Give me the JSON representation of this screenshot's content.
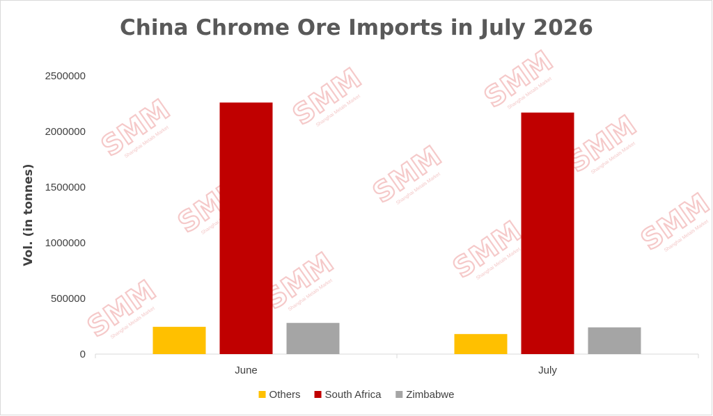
{
  "chart_data": {
    "type": "bar",
    "title": "China Chrome Ore Imports in July 2026",
    "ylabel": "Vol. (in tonnes)",
    "xlabel": "",
    "categories": [
      "June",
      "July"
    ],
    "ylim": [
      0,
      2500000
    ],
    "yticks": [
      "0",
      "500000",
      "1000000",
      "1500000",
      "2000000",
      "2500000"
    ],
    "series": [
      {
        "name": "Others",
        "color": "#ffc000",
        "values": [
          245000,
          180000
        ]
      },
      {
        "name": "South Africa",
        "color": "#c00000",
        "values": [
          2260000,
          2170000
        ]
      },
      {
        "name": "Zimbabwe",
        "color": "#a5a5a5",
        "values": [
          280000,
          240000
        ]
      }
    ],
    "legend_position": "bottom",
    "grid": false
  },
  "watermark": {
    "logo": "SMM",
    "subtitle": "Shanghai Metals Market"
  }
}
